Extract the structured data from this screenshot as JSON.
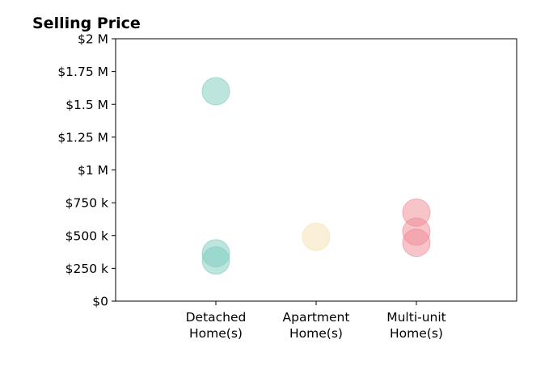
{
  "chart_data": {
    "type": "scatter",
    "title": "Selling Price",
    "xlabel": "",
    "ylabel": "",
    "ylim": [
      0,
      2000000
    ],
    "yticks": [
      {
        "value": 0,
        "label": "$0"
      },
      {
        "value": 250000,
        "label": "$250 k"
      },
      {
        "value": 500000,
        "label": "$500 k"
      },
      {
        "value": 750000,
        "label": "$750 k"
      },
      {
        "value": 1000000,
        "label": "$1 M"
      },
      {
        "value": 1250000,
        "label": "$1.25 M"
      },
      {
        "value": 1500000,
        "label": "$1.5 M"
      },
      {
        "value": 1750000,
        "label": "$1.75 M"
      },
      {
        "value": 2000000,
        "label": "$2 M"
      }
    ],
    "categories": [
      {
        "lines": [
          "Detached",
          "Home(s)"
        ]
      },
      {
        "lines": [
          "Apartment",
          "Home(s)"
        ]
      },
      {
        "lines": [
          "Multi-unit",
          "Home(s)"
        ]
      }
    ],
    "series": [
      {
        "category": 0,
        "color": "#7ccbbe",
        "values": [
          1600000,
          365000,
          310000
        ]
      },
      {
        "category": 1,
        "color": "#f6dfb0",
        "values": [
          490000
        ]
      },
      {
        "category": 2,
        "color": "#ef8a96",
        "values": [
          675000,
          530000,
          445000
        ]
      }
    ],
    "grid": false,
    "legend": "none"
  }
}
